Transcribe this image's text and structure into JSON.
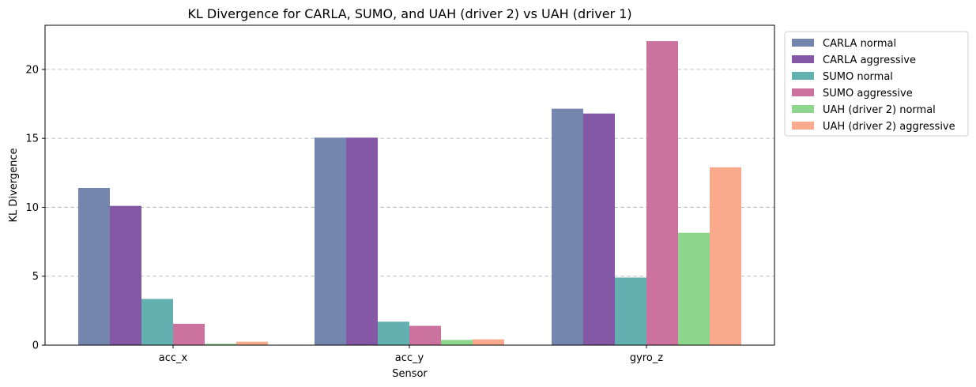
{
  "chart_data": {
    "type": "bar",
    "title": "KL Divergence for CARLA, SUMO, and UAH (driver 2) vs UAH (driver 1)",
    "xlabel": "Sensor",
    "ylabel": "KL Divergence",
    "categories": [
      "acc_x",
      "acc_y",
      "gyro_z"
    ],
    "ylim": [
      0,
      23.2
    ],
    "yticks": [
      0,
      5,
      10,
      15,
      20
    ],
    "grid": "y, dashed",
    "legend_position": "outside right, top",
    "series": [
      {
        "name": "CARLA normal",
        "color": "#7586ae",
        "values": [
          11.4,
          15.05,
          17.15
        ]
      },
      {
        "name": "CARLA aggressive",
        "color": "#8558a5",
        "values": [
          10.1,
          15.05,
          16.8
        ]
      },
      {
        "name": "SUMO normal",
        "color": "#62b0b0",
        "values": [
          3.35,
          1.7,
          4.9
        ]
      },
      {
        "name": "SUMO aggressive",
        "color": "#cc729f",
        "values": [
          1.55,
          1.4,
          22.05
        ]
      },
      {
        "name": "UAH (driver 2) normal",
        "color": "#8ed68e",
        "values": [
          0.1,
          0.38,
          8.15
        ]
      },
      {
        "name": "UAH (driver 2) aggressive",
        "color": "#f9aa8c",
        "values": [
          0.25,
          0.42,
          12.9
        ]
      }
    ]
  }
}
